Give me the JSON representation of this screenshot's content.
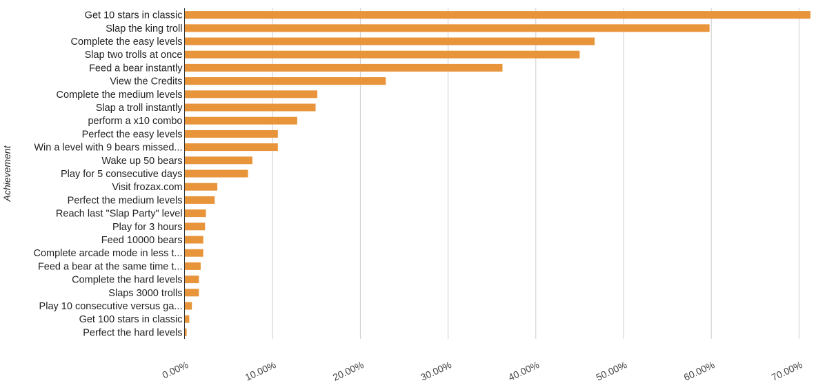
{
  "chart_data": {
    "type": "bar",
    "orientation": "horizontal",
    "ylabel": "Achievement",
    "xlabel": "",
    "xlim": [
      0,
      72
    ],
    "x_ticks": [
      0,
      10,
      20,
      30,
      40,
      50,
      60,
      70
    ],
    "x_tick_labels": [
      "0.00%",
      "10.00%",
      "20.00%",
      "30.00%",
      "40.00%",
      "50.00%",
      "60.00%",
      "70.00%"
    ],
    "grid": true,
    "bar_color": "#e8943a",
    "categories": [
      "Get 10 stars in classic",
      "Slap the king troll",
      "Complete the easy levels",
      "Slap two trolls at once",
      "Feed a bear instantly",
      "View the Credits",
      "Complete the medium levels",
      "Slap a troll instantly",
      "perform a x10 combo",
      "Perfect the easy levels",
      "Win a level with 9 bears missed...",
      "Wake up 50 bears",
      "Play for 5 consecutive days",
      "Visit frozax.com",
      "Perfect the medium levels",
      "Reach last \"Slap Party\" level",
      "Play for 3 hours",
      "Feed 10000 bears",
      "Complete arcade mode in less t...",
      "Feed a bear at the same time t...",
      "Complete the hard levels",
      "Slaps 3000 trolls",
      "Play 10 consecutive versus ga...",
      "Get 100 stars in classic",
      "Perfect the hard levels"
    ],
    "values": [
      71.3,
      59.8,
      46.7,
      45.0,
      36.2,
      22.9,
      15.1,
      14.9,
      12.8,
      10.6,
      10.6,
      7.7,
      7.2,
      3.7,
      3.4,
      2.4,
      2.3,
      2.1,
      2.1,
      1.8,
      1.6,
      1.6,
      0.8,
      0.5,
      0.2
    ]
  }
}
